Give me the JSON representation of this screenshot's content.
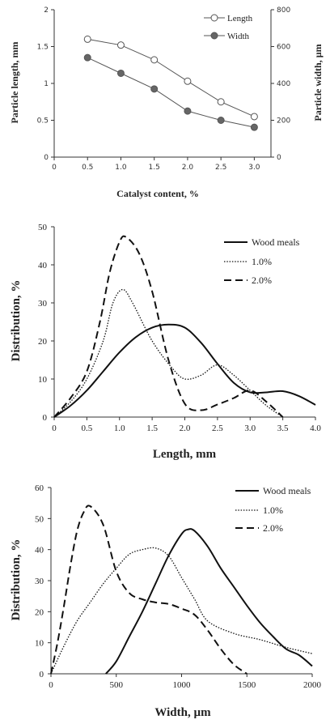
{
  "chart_data": [
    {
      "type": "line",
      "xlabel": "Catalyst content, %",
      "ylabel_left": "Particle length, mm",
      "ylabel_right": "Particle width, µm",
      "x_ticks": [
        "0",
        "0.5",
        "1.0",
        "1.5",
        "2.0",
        "2.5",
        "3.0"
      ],
      "y_left_ticks": [
        "0",
        "0.5",
        "1",
        "1.5",
        "2"
      ],
      "y_right_ticks": [
        "0",
        "200",
        "400",
        "600",
        "800"
      ],
      "xlim": [
        0,
        3.25
      ],
      "ylim_left": [
        0,
        2
      ],
      "ylim_right": [
        0,
        800
      ],
      "legend_position": "top-right",
      "grid": false,
      "x": [
        0.5,
        1.0,
        1.5,
        2.0,
        2.5,
        3.0
      ],
      "series": [
        {
          "name": "Length",
          "axis": "left",
          "marker": "open-circle",
          "values": [
            1.6,
            1.52,
            1.32,
            1.03,
            0.75,
            0.55
          ]
        },
        {
          "name": "Width",
          "axis": "right",
          "marker": "filled-circle",
          "values": [
            540,
            455,
            370,
            250,
            200,
            162
          ]
        }
      ]
    },
    {
      "type": "line",
      "xlabel": "Length, mm",
      "ylabel": "Distribution, %",
      "x_ticks": [
        "0",
        "0.5",
        "1.0",
        "1.5",
        "2.0",
        "2.5",
        "3.0",
        "3.5",
        "4.0"
      ],
      "y_ticks": [
        "0",
        "10",
        "20",
        "30",
        "40",
        "50"
      ],
      "xlim": [
        0,
        4
      ],
      "ylim": [
        0,
        50
      ],
      "legend_position": "top-right",
      "grid": false,
      "series": [
        {
          "name": "Wood meals",
          "style": "solid",
          "x": [
            0,
            0.25,
            0.5,
            0.75,
            1.0,
            1.25,
            1.5,
            1.75,
            2.0,
            2.25,
            2.5,
            2.75,
            3.0,
            3.25,
            3.5,
            3.75,
            4.0
          ],
          "values": [
            0,
            3,
            7,
            12,
            17,
            21,
            23.5,
            24.3,
            23.5,
            19.5,
            14,
            9,
            6.5,
            6.5,
            6.8,
            5.5,
            3.2
          ]
        },
        {
          "name": "1.0%",
          "style": "dotted",
          "x": [
            0,
            0.25,
            0.5,
            0.75,
            0.9,
            1.05,
            1.2,
            1.5,
            1.8,
            2.0,
            2.25,
            2.5,
            2.75,
            3.0,
            3.25,
            3.5
          ],
          "values": [
            0,
            4,
            10,
            20,
            30,
            33.5,
            30,
            20,
            13,
            10,
            11,
            13.7,
            11,
            7,
            3,
            0
          ]
        },
        {
          "name": "2.0%",
          "style": "dashed",
          "x": [
            0,
            0.25,
            0.5,
            0.7,
            0.85,
            1.0,
            1.1,
            1.3,
            1.5,
            1.75,
            2.0,
            2.25,
            2.5,
            2.75,
            3.0,
            3.25,
            3.5
          ],
          "values": [
            0,
            5,
            12,
            25,
            38,
            46,
            47.3,
            43,
            33,
            15,
            3.5,
            1.8,
            3.3,
            5,
            7,
            4,
            0
          ]
        }
      ]
    },
    {
      "type": "line",
      "xlabel": "Width, µm",
      "ylabel": "Distribution, %",
      "x_ticks": [
        "0",
        "500",
        "1000",
        "1500",
        "2000"
      ],
      "y_ticks": [
        "0",
        "10",
        "20",
        "30",
        "40",
        "50",
        "60"
      ],
      "xlim": [
        0,
        2000
      ],
      "ylim": [
        0,
        60
      ],
      "legend_position": "top-right",
      "grid": false,
      "series": [
        {
          "name": "Wood meals",
          "style": "solid",
          "x": [
            420,
            500,
            600,
            700,
            800,
            900,
            1000,
            1050,
            1100,
            1200,
            1300,
            1400,
            1500,
            1600,
            1700,
            1800,
            1900,
            2000
          ],
          "values": [
            0,
            4,
            12,
            20,
            29,
            38,
            45,
            46.5,
            46,
            41,
            34,
            28,
            22,
            16.5,
            12,
            8,
            6,
            2.5
          ]
        },
        {
          "name": "1.0%",
          "style": "dotted",
          "x": [
            0,
            100,
            200,
            300,
            400,
            500,
            600,
            700,
            800,
            900,
            1000,
            1100,
            1200,
            1400,
            1600,
            1800,
            2000
          ],
          "values": [
            0,
            9,
            17,
            23,
            29,
            34,
            38.5,
            40,
            40.5,
            38,
            31,
            24,
            17,
            13,
            11,
            8.5,
            6.5
          ]
        },
        {
          "name": "2.0%",
          "style": "dashed",
          "x": [
            0,
            50,
            100,
            150,
            200,
            250,
            300,
            400,
            500,
            600,
            700,
            800,
            900,
            1000,
            1100,
            1200,
            1300,
            1400,
            1500
          ],
          "values": [
            0,
            10,
            22,
            35,
            46,
            52,
            54,
            48,
            33,
            26,
            24,
            23,
            22.5,
            21,
            19,
            14,
            8,
            3,
            0
          ]
        }
      ]
    }
  ]
}
